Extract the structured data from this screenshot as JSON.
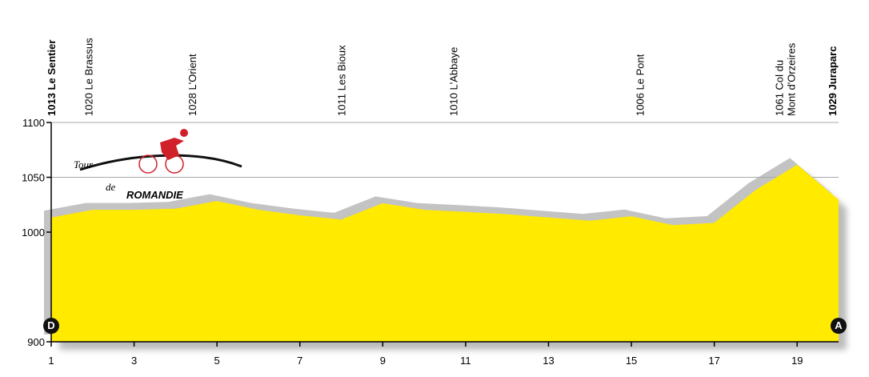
{
  "chart_data": {
    "type": "area",
    "x": [
      1,
      2,
      3,
      4,
      5,
      6,
      7,
      8,
      9,
      10,
      11,
      12,
      13,
      14,
      15,
      16,
      17,
      18,
      19,
      20
    ],
    "values": [
      1013,
      1020,
      1020,
      1021,
      1028,
      1020,
      1015,
      1011,
      1026,
      1020,
      1018,
      1016,
      1013,
      1010,
      1014,
      1006,
      1008,
      1038,
      1061,
      1029
    ],
    "color": "#ffea00",
    "shadow_color": "#c3c3c3",
    "xlim": [
      1,
      20
    ],
    "xticks": [
      1,
      3,
      5,
      7,
      9,
      11,
      13,
      15,
      17,
      19
    ],
    "ylim": [
      900,
      1100
    ],
    "yticks": [
      900,
      1000,
      1050,
      1100
    ],
    "grid": true,
    "waypoints": [
      {
        "x": 1,
        "lines": [
          "1013 Le Sentier"
        ],
        "bold": true
      },
      {
        "x": 1.9,
        "lines": [
          "1020 Le Brassus"
        ],
        "bold": false
      },
      {
        "x": 4.4,
        "lines": [
          "1028 L'Orient"
        ],
        "bold": false
      },
      {
        "x": 8,
        "lines": [
          "1011 Les Bioux"
        ],
        "bold": false
      },
      {
        "x": 10.7,
        "lines": [
          "1010 L'Abbaye"
        ],
        "bold": false
      },
      {
        "x": 15.2,
        "lines": [
          "1006 Le Pont"
        ],
        "bold": false
      },
      {
        "x": 18.85,
        "lines": [
          "1061 Col du",
          "Mont d'Orzeires"
        ],
        "bold": false
      },
      {
        "x": 19.85,
        "lines": [
          "1029 Juraparc"
        ],
        "bold": true
      }
    ],
    "start_marker": "D",
    "finish_marker": "A",
    "logo": {
      "word1": "Tour",
      "word2": "de",
      "word3": "ROMANDIE"
    }
  }
}
